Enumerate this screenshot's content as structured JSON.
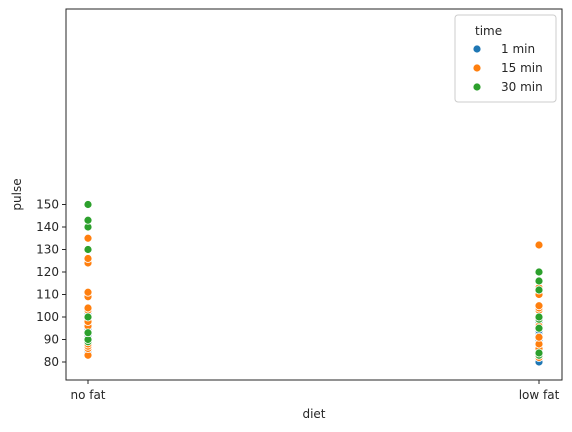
{
  "chart_data": {
    "type": "scatter",
    "title": "",
    "xlabel": "diet",
    "ylabel": "pulse",
    "categories": [
      "no fat",
      "low fat"
    ],
    "ylim": [
      78,
      154
    ],
    "yticks": [
      80,
      90,
      100,
      110,
      120,
      130,
      140,
      150
    ],
    "grid": false,
    "legend": {
      "title": "time",
      "placement": "top-right"
    },
    "series": [
      {
        "name": "1 min",
        "color": "#1f77b4",
        "points": [
          {
            "x": "no fat",
            "y": 84
          },
          {
            "x": "no fat",
            "y": 92
          },
          {
            "x": "no fat",
            "y": 94
          },
          {
            "x": "no fat",
            "y": 95
          },
          {
            "x": "no fat",
            "y": 97
          },
          {
            "x": "no fat",
            "y": 99
          },
          {
            "x": "no fat",
            "y": 100
          },
          {
            "x": "no fat",
            "y": 101
          },
          {
            "x": "no fat",
            "y": 102
          },
          {
            "x": "no fat",
            "y": 103
          },
          {
            "x": "low fat",
            "y": 80
          },
          {
            "x": "low fat",
            "y": 87
          },
          {
            "x": "low fat",
            "y": 89
          },
          {
            "x": "low fat",
            "y": 90
          },
          {
            "x": "low fat",
            "y": 92
          },
          {
            "x": "low fat",
            "y": 93
          },
          {
            "x": "low fat",
            "y": 94
          },
          {
            "x": "low fat",
            "y": 96
          },
          {
            "x": "low fat",
            "y": 98
          },
          {
            "x": "low fat",
            "y": 100
          }
        ]
      },
      {
        "name": "15 min",
        "color": "#ff7f0e",
        "points": [
          {
            "x": "no fat",
            "y": 83
          },
          {
            "x": "no fat",
            "y": 86
          },
          {
            "x": "no fat",
            "y": 87
          },
          {
            "x": "no fat",
            "y": 88
          },
          {
            "x": "no fat",
            "y": 96
          },
          {
            "x": "no fat",
            "y": 98
          },
          {
            "x": "no fat",
            "y": 103
          },
          {
            "x": "no fat",
            "y": 104
          },
          {
            "x": "no fat",
            "y": 109
          },
          {
            "x": "no fat",
            "y": 111
          },
          {
            "x": "no fat",
            "y": 124
          },
          {
            "x": "no fat",
            "y": 126
          },
          {
            "x": "no fat",
            "y": 135
          },
          {
            "x": "low fat",
            "y": 82
          },
          {
            "x": "low fat",
            "y": 83
          },
          {
            "x": "low fat",
            "y": 86
          },
          {
            "x": "low fat",
            "y": 88
          },
          {
            "x": "low fat",
            "y": 91
          },
          {
            "x": "low fat",
            "y": 95
          },
          {
            "x": "low fat",
            "y": 96
          },
          {
            "x": "low fat",
            "y": 103
          },
          {
            "x": "low fat",
            "y": 104
          },
          {
            "x": "low fat",
            "y": 105
          },
          {
            "x": "low fat",
            "y": 110
          },
          {
            "x": "low fat",
            "y": 113
          },
          {
            "x": "low fat",
            "y": 132
          }
        ]
      },
      {
        "name": "30 min",
        "color": "#2ca02c",
        "points": [
          {
            "x": "no fat",
            "y": 89
          },
          {
            "x": "no fat",
            "y": 90
          },
          {
            "x": "no fat",
            "y": 93
          },
          {
            "x": "no fat",
            "y": 100
          },
          {
            "x": "no fat",
            "y": 130
          },
          {
            "x": "no fat",
            "y": 140
          },
          {
            "x": "no fat",
            "y": 143
          },
          {
            "x": "no fat",
            "y": 150
          },
          {
            "x": "low fat",
            "y": 83
          },
          {
            "x": "low fat",
            "y": 84
          },
          {
            "x": "low fat",
            "y": 95
          },
          {
            "x": "low fat",
            "y": 99
          },
          {
            "x": "low fat",
            "y": 100
          },
          {
            "x": "low fat",
            "y": 112
          },
          {
            "x": "low fat",
            "y": 116
          },
          {
            "x": "low fat",
            "y": 120
          }
        ]
      }
    ]
  }
}
